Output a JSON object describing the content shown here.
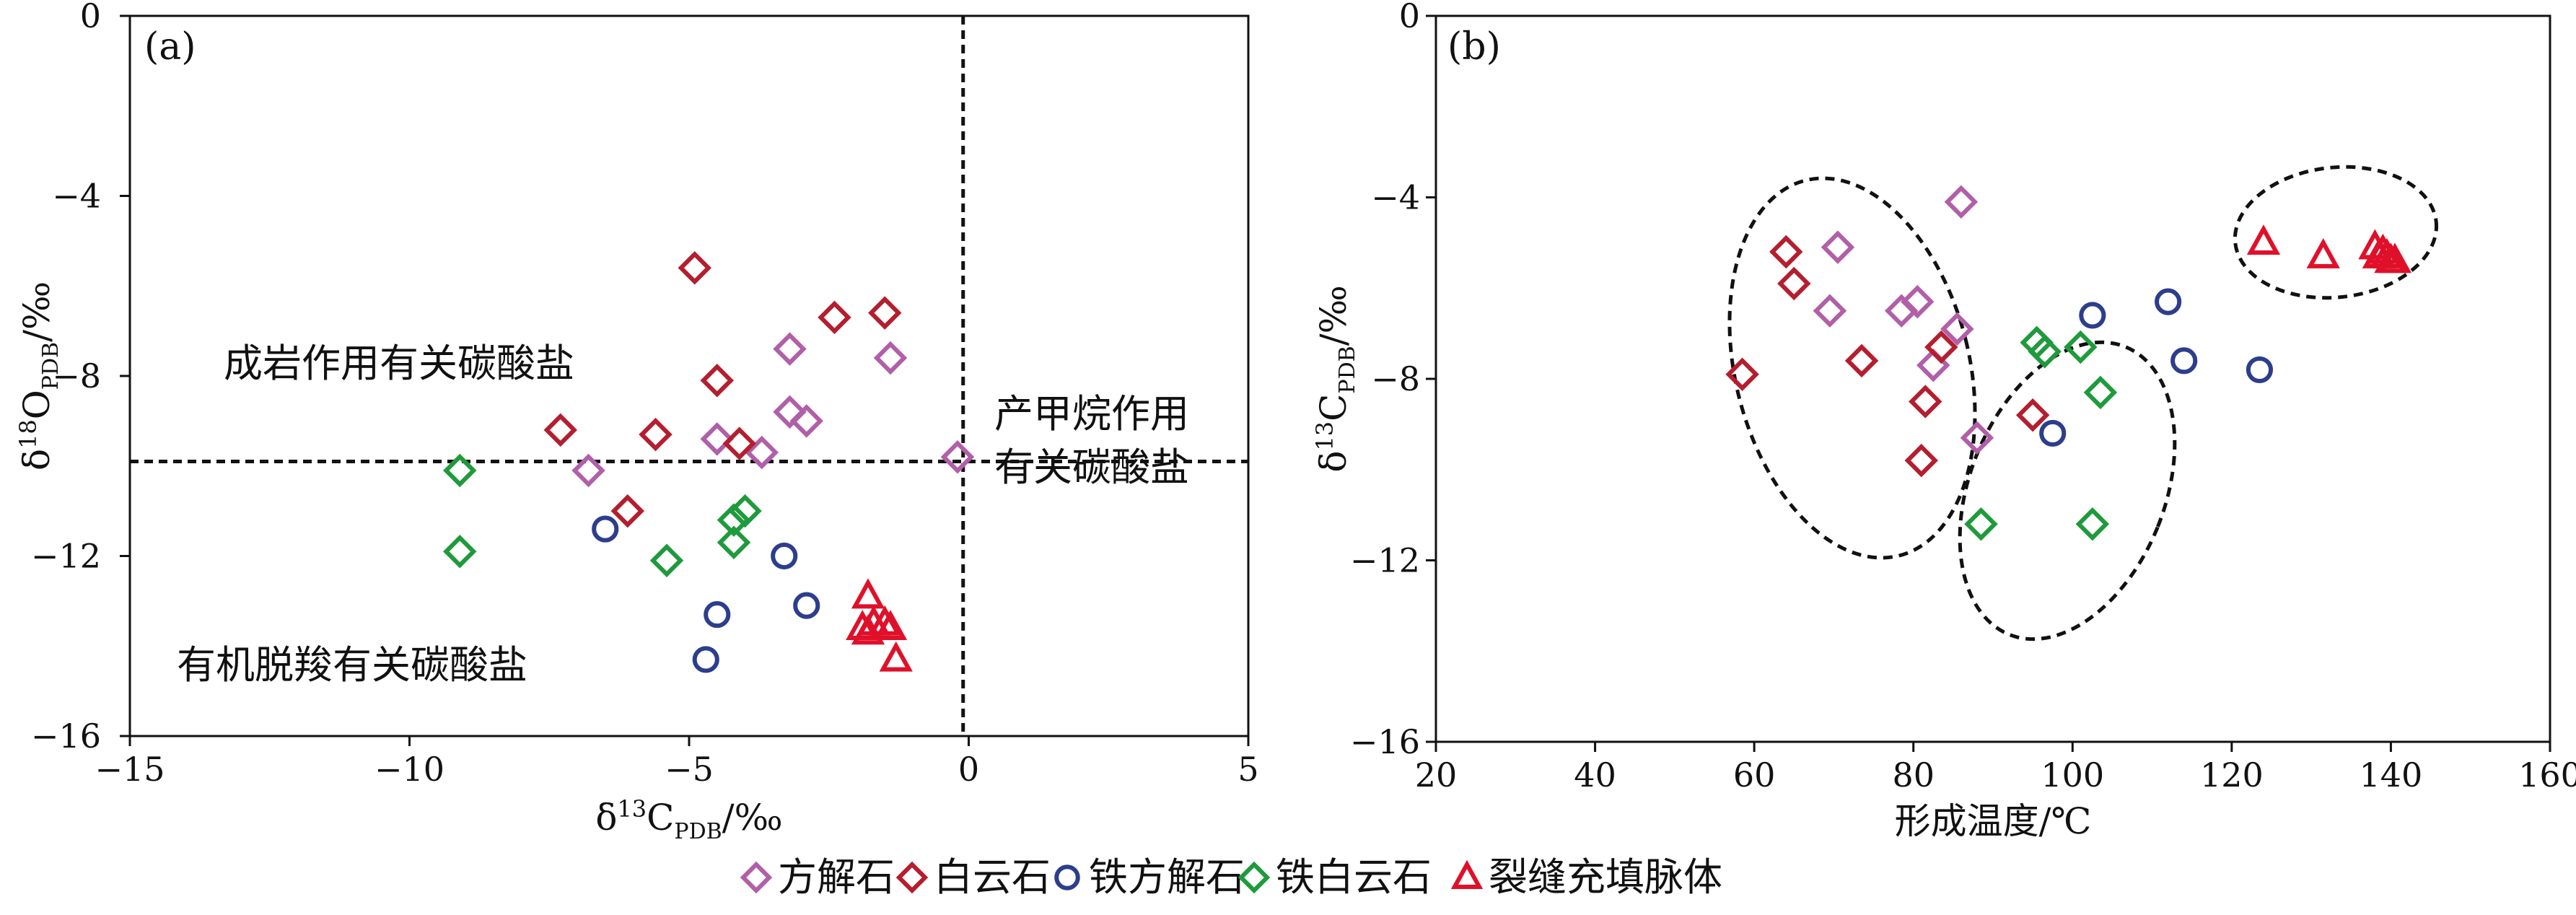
{
  "chart_data": [
    {
      "type": "scatter",
      "panel_label": "(a)",
      "xlabel": "δ13CPDB/‰",
      "ylabel": "δ18OPDB/‰",
      "xlim": [
        -15,
        5
      ],
      "ylim": [
        -16,
        0
      ],
      "xticks": [
        "−15",
        "−10",
        "−5",
        "0",
        "5"
      ],
      "yticks": [
        "0",
        "−4",
        "−8",
        "−12",
        "−16"
      ],
      "region_labels": [
        "成岩作用有关碳酸盐",
        "产甲烷作用",
        "有关碳酸盐",
        "有机脱羧有关碳酸盐"
      ],
      "reference_lines": {
        "horizontal_y": -9.9,
        "vertical_x": -0.1
      },
      "series": [
        {
          "name": "方解石",
          "marker": "diamond",
          "color": "#b05fa8",
          "points": [
            [
              -6.8,
              -10.1
            ],
            [
              -4.5,
              -9.4
            ],
            [
              -3.7,
              -9.7
            ],
            [
              -3.2,
              -8.8
            ],
            [
              -2.9,
              -9.0
            ],
            [
              -3.2,
              -7.4
            ],
            [
              -1.4,
              -7.6
            ],
            [
              -0.2,
              -9.8
            ]
          ]
        },
        {
          "name": "白云石",
          "marker": "diamond",
          "color": "#b41e2e",
          "points": [
            [
              -4.9,
              -5.6
            ],
            [
              -2.4,
              -6.7
            ],
            [
              -1.5,
              -6.6
            ],
            [
              -4.5,
              -8.1
            ],
            [
              -7.3,
              -9.2
            ],
            [
              -5.6,
              -9.3
            ],
            [
              -4.1,
              -9.5
            ],
            [
              -6.1,
              -11.0
            ]
          ]
        },
        {
          "name": "铁方解石",
          "marker": "circle",
          "color": "#2c3e8c",
          "points": [
            [
              -6.5,
              -11.4
            ],
            [
              -3.3,
              -12.0
            ],
            [
              -4.5,
              -13.3
            ],
            [
              -2.9,
              -13.1
            ],
            [
              -4.7,
              -14.3
            ]
          ]
        },
        {
          "name": "铁白云石",
          "marker": "diamond",
          "color": "#1f9a3c",
          "points": [
            [
              -9.1,
              -10.1
            ],
            [
              -4.2,
              -11.2
            ],
            [
              -4.0,
              -11.0
            ],
            [
              -4.2,
              -11.7
            ],
            [
              -9.1,
              -11.9
            ],
            [
              -5.4,
              -12.1
            ]
          ]
        },
        {
          "name": "裂缝充填脉体",
          "marker": "triangle",
          "color": "#e0102a",
          "points": [
            [
              -1.8,
              -12.9
            ],
            [
              -1.9,
              -13.6
            ],
            [
              -1.7,
              -13.5
            ],
            [
              -1.5,
              -13.5
            ],
            [
              -1.4,
              -13.6
            ],
            [
              -1.8,
              -13.7
            ],
            [
              -1.3,
              -14.3
            ]
          ]
        }
      ]
    },
    {
      "type": "scatter",
      "panel_label": "(b)",
      "xlabel": "形成温度/℃",
      "ylabel": "δ13CPDB/‰",
      "xlim": [
        20,
        160
      ],
      "ylim": [
        -16,
        0
      ],
      "xticks": [
        "20",
        "40",
        "60",
        "80",
        "100",
        "120",
        "140",
        "160"
      ],
      "yticks": [
        "0",
        "−4",
        "−8",
        "−12",
        "−16"
      ],
      "series": [
        {
          "name": "方解石",
          "marker": "diamond",
          "color": "#b05fa8",
          "points": [
            [
              70.5,
              -5.1
            ],
            [
              86,
              -4.1
            ],
            [
              69.5,
              -6.5
            ],
            [
              78.5,
              -6.5
            ],
            [
              80.5,
              -6.3
            ],
            [
              85.5,
              -6.9
            ],
            [
              82.5,
              -7.7
            ],
            [
              88,
              -9.3
            ]
          ]
        },
        {
          "name": "白云石",
          "marker": "diamond",
          "color": "#b41e2e",
          "points": [
            [
              64,
              -5.2
            ],
            [
              65,
              -5.9
            ],
            [
              73.5,
              -7.6
            ],
            [
              58.5,
              -7.9
            ],
            [
              83.5,
              -7.3
            ],
            [
              81.5,
              -8.5
            ],
            [
              95,
              -8.8
            ],
            [
              81,
              -9.8
            ]
          ]
        },
        {
          "name": "铁方解石",
          "marker": "circle",
          "color": "#2c3e8c",
          "points": [
            [
              102.5,
              -6.6
            ],
            [
              112,
              -6.3
            ],
            [
              114,
              -7.6
            ],
            [
              123.5,
              -7.8
            ],
            [
              97.5,
              -9.2
            ]
          ]
        },
        {
          "name": "铁白云石",
          "marker": "diamond",
          "color": "#1f9a3c",
          "points": [
            [
              95.5,
              -7.2
            ],
            [
              96.5,
              -7.4
            ],
            [
              101,
              -7.3
            ],
            [
              103.5,
              -8.3
            ],
            [
              88.5,
              -11.2
            ],
            [
              102.5,
              -11.2
            ]
          ]
        },
        {
          "name": "裂缝充填脉体",
          "marker": "triangle",
          "color": "#e0102a",
          "points": [
            [
              124,
              -5.0
            ],
            [
              131.5,
              -5.3
            ],
            [
              138,
              -5.1
            ],
            [
              138.5,
              -5.3
            ],
            [
              139,
              -5.2
            ],
            [
              139.5,
              -5.3
            ],
            [
              140,
              -5.4
            ],
            [
              140.5,
              -5.4
            ]
          ]
        }
      ]
    }
  ],
  "legend": {
    "items": [
      {
        "label": "方解石",
        "marker": "diamond",
        "color": "#b05fa8"
      },
      {
        "label": "白云石",
        "marker": "diamond",
        "color": "#b41e2e"
      },
      {
        "label": "铁方解石",
        "marker": "circle",
        "color": "#2c3e8c"
      },
      {
        "label": "铁白云石",
        "marker": "diamond",
        "color": "#1f9a3c"
      },
      {
        "label": "裂缝充填脉体",
        "marker": "triangle",
        "color": "#e0102a"
      }
    ]
  }
}
